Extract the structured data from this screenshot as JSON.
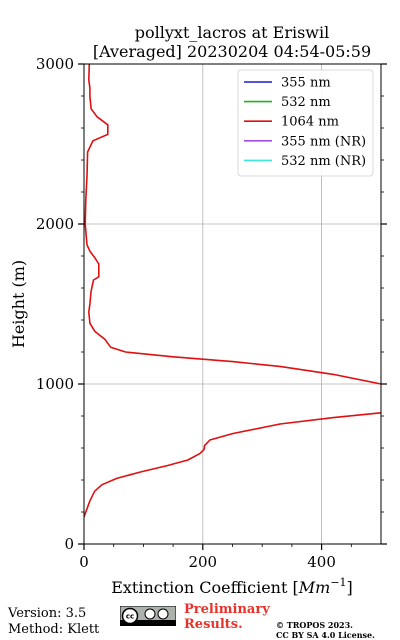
{
  "chart_data": {
    "type": "line",
    "title_line1": "pollyxt_lacros at Eriswil",
    "title_line2": "[Averaged] 20230204 04:54-05:59",
    "xlabel_prefix": "Extinction Coefficient [",
    "xlabel_unit_base": "Mm",
    "xlabel_unit_exp": "−1",
    "xlabel_suffix": "]",
    "ylabel": "Height (m)",
    "xlim": [
      0,
      500
    ],
    "ylim": [
      0,
      3000
    ],
    "x_ticks": [
      0,
      200,
      400
    ],
    "y_ticks": [
      0,
      1000,
      2000,
      3000
    ],
    "grid": true,
    "legend_position": "upper right",
    "legend": [
      {
        "label": "355 nm",
        "color": "#1c1cd6"
      },
      {
        "label": "532 nm",
        "color": "#22b022"
      },
      {
        "label": "1064 nm",
        "color": "#e01010"
      },
      {
        "label": "355 nm (NR)",
        "color": "#a64ddf"
      },
      {
        "label": "532 nm (NR)",
        "color": "#3ee8d6"
      }
    ],
    "series": [
      {
        "name": "1064 nm",
        "color": "#e01010",
        "points": [
          [
            0,
            170
          ],
          [
            5,
            220
          ],
          [
            10,
            270
          ],
          [
            18,
            330
          ],
          [
            30,
            370
          ],
          [
            55,
            410
          ],
          [
            95,
            450
          ],
          [
            140,
            490
          ],
          [
            175,
            525
          ],
          [
            195,
            565
          ],
          [
            202,
            590
          ],
          [
            203,
            615
          ],
          [
            212,
            650
          ],
          [
            250,
            690
          ],
          [
            330,
            750
          ],
          [
            420,
            790
          ],
          [
            500,
            820
          ],
          null,
          [
            500,
            1000
          ],
          [
            420,
            1060
          ],
          [
            330,
            1110
          ],
          [
            250,
            1140
          ],
          [
            150,
            1170
          ],
          [
            70,
            1200
          ],
          [
            45,
            1230
          ],
          [
            35,
            1280
          ],
          [
            18,
            1330
          ],
          [
            10,
            1380
          ],
          [
            8,
            1450
          ],
          [
            10,
            1500
          ],
          [
            12,
            1580
          ],
          [
            16,
            1650
          ],
          [
            25,
            1670
          ],
          [
            25,
            1750
          ],
          [
            18,
            1790
          ],
          [
            10,
            1830
          ],
          [
            5,
            1870
          ],
          [
            2,
            2000
          ],
          [
            3,
            2150
          ],
          [
            5,
            2300
          ],
          [
            6,
            2450
          ],
          [
            15,
            2520
          ],
          [
            40,
            2560
          ],
          [
            40,
            2620
          ],
          [
            22,
            2670
          ],
          [
            12,
            2720
          ],
          [
            10,
            2800
          ],
          [
            10,
            2850
          ],
          [
            8,
            2900
          ],
          [
            9,
            3000
          ]
        ]
      }
    ]
  },
  "footer": {
    "version_line": "Version: 3.5",
    "method_line": "Method: Klett",
    "prelim_line1": "Preliminary",
    "prelim_line2": "Results.",
    "copyright_line1": "© TROPOS 2023.",
    "copyright_line2": "CC BY SA 4.0 License."
  }
}
